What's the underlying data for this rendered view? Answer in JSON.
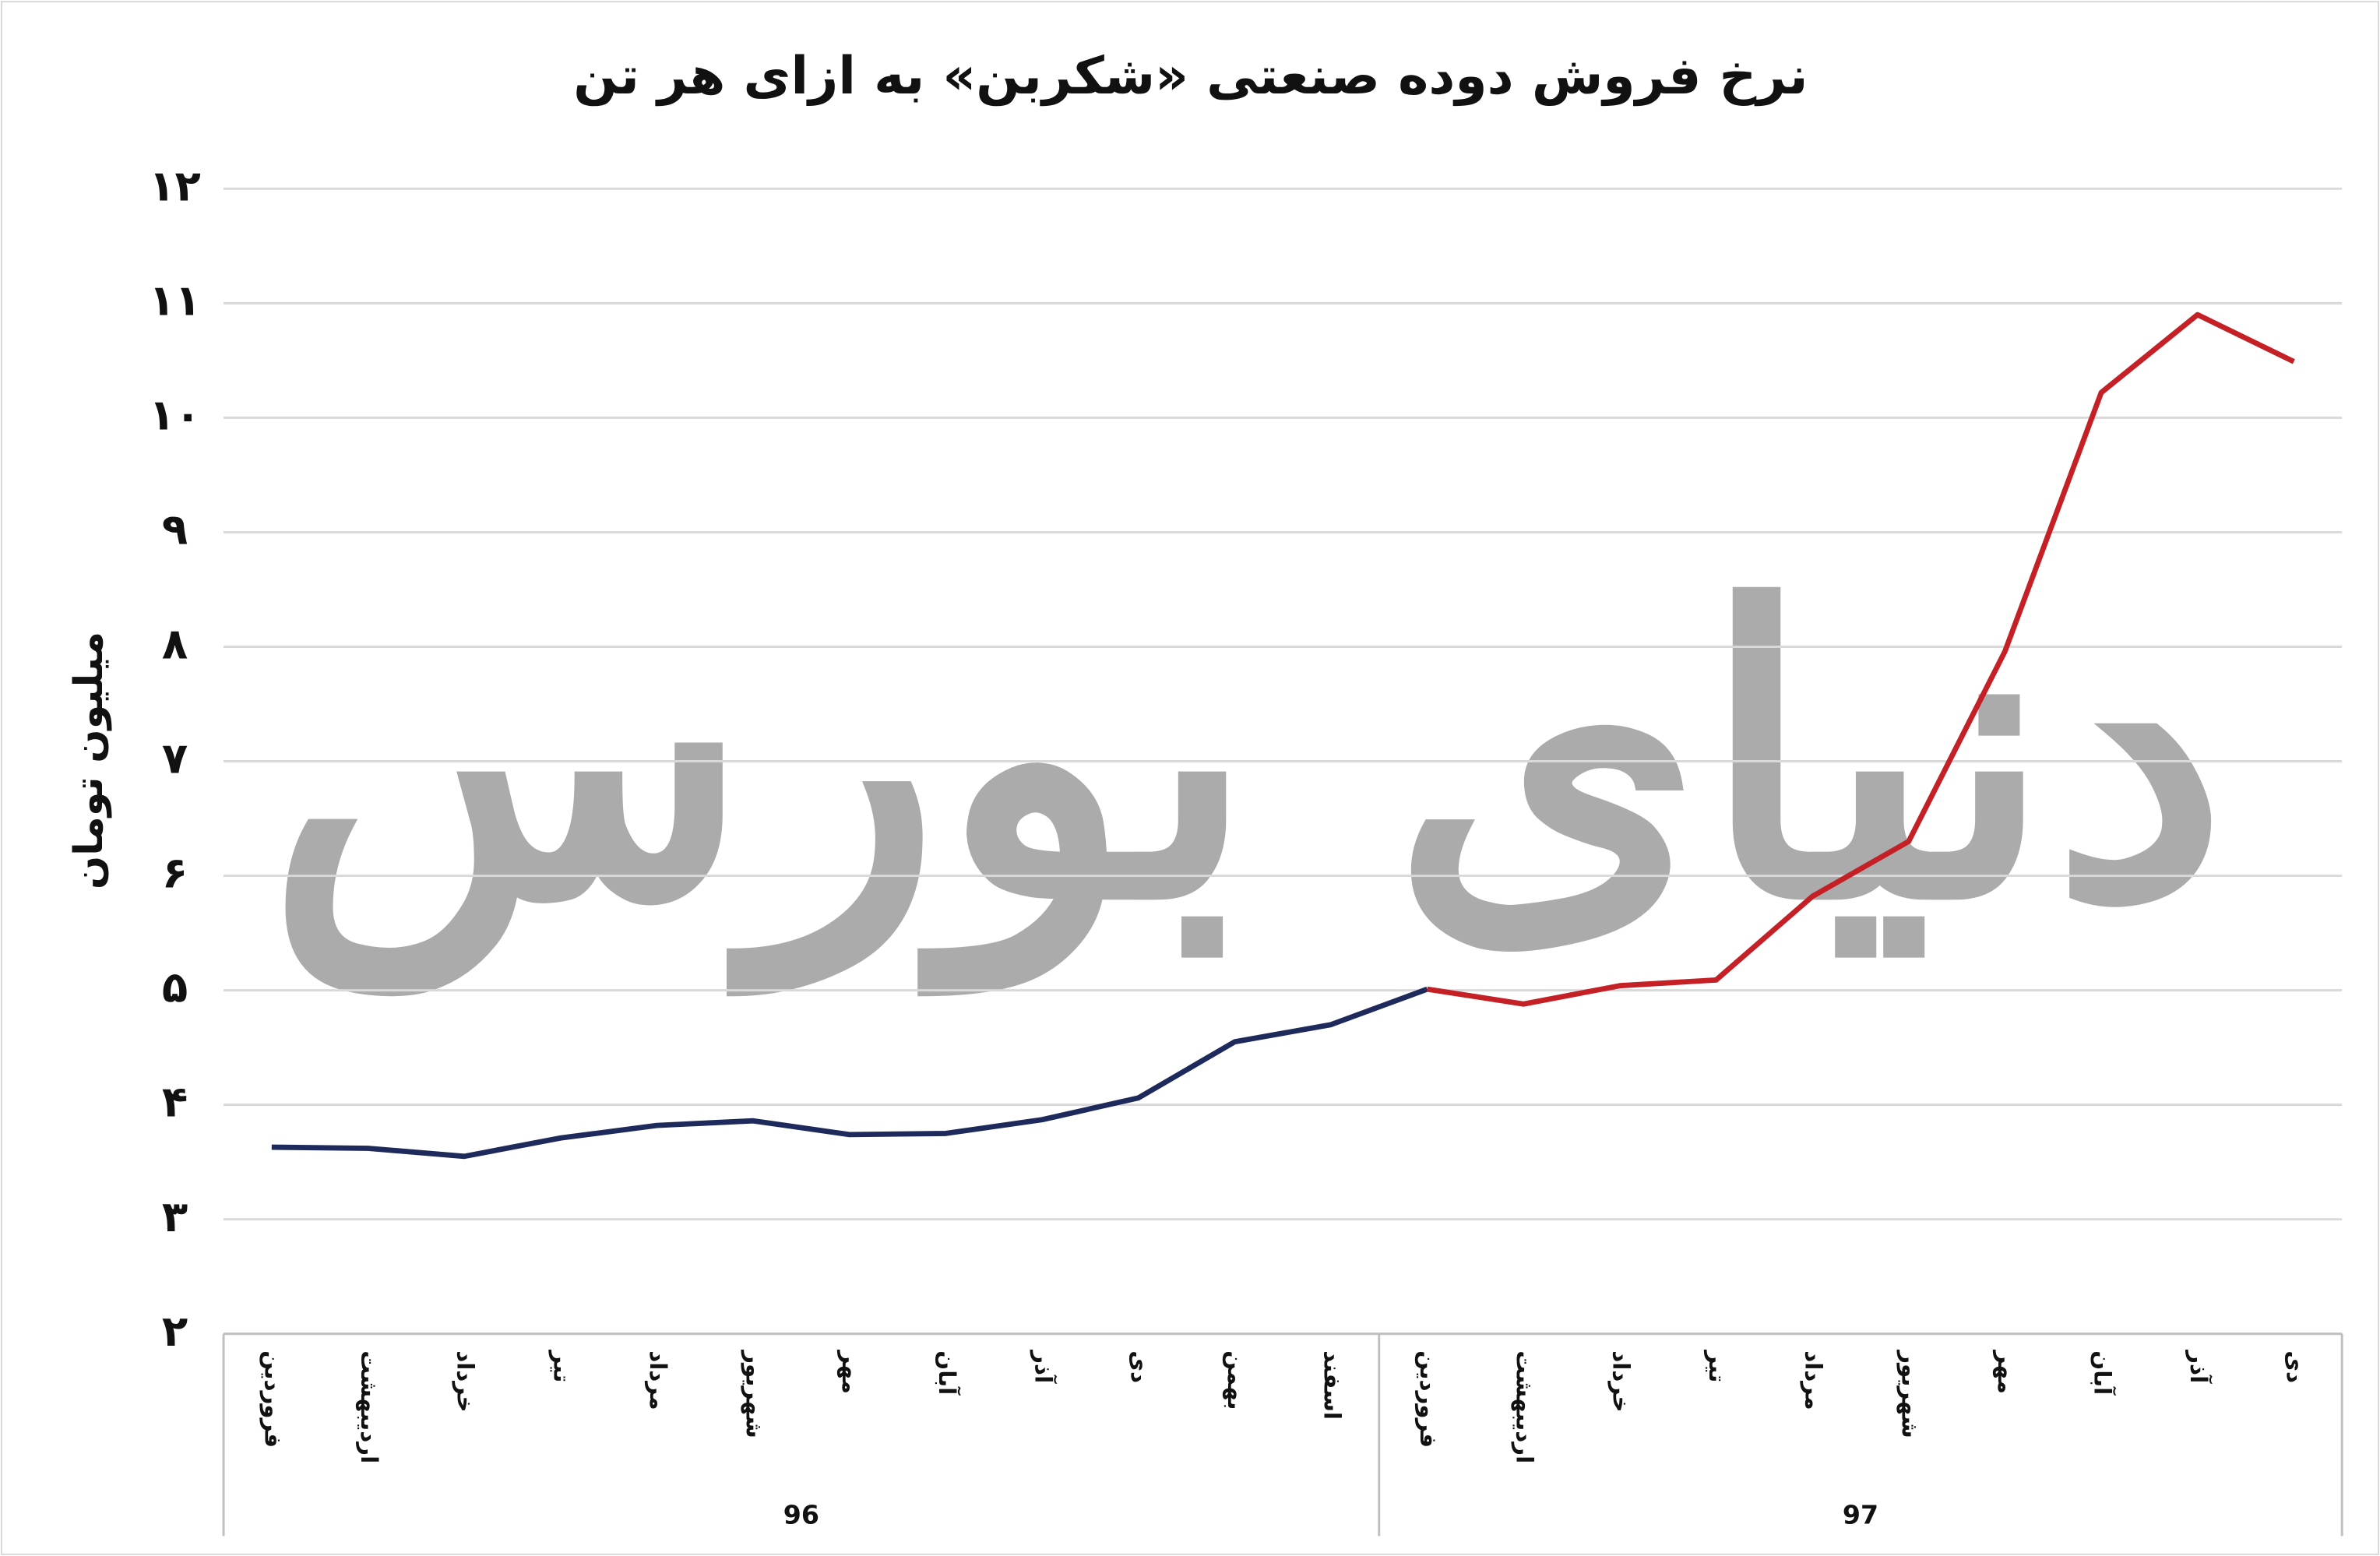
{
  "chart_data": {
    "type": "line",
    "title": "نرخ فروش دوده صنعتی «شکربن» به ازای هر تن",
    "y_label": "میلیون تومان",
    "watermark": "دنیای بورس",
    "categories": [
      "فروردین",
      "اردیبهشت",
      "خرداد",
      "تیر",
      "مرداد",
      "شهریور",
      "مهر",
      "آبان",
      "آذر",
      "دی",
      "بهمن",
      "اسفند",
      "فروردین",
      "اردیبهشت",
      "خرداد",
      "تیر",
      "مرداد",
      "شهریور",
      "مهر",
      "آبان",
      "آذر",
      "دی"
    ],
    "series": [
      {
        "name": "96",
        "color": "#1f2a5c",
        "values": [
          3.63,
          3.62,
          3.55,
          3.71,
          3.82,
          3.86,
          3.74,
          3.75,
          3.87,
          4.06,
          4.55,
          4.7,
          5.01,
          null,
          null,
          null,
          null,
          null,
          null,
          null,
          null,
          null
        ]
      },
      {
        "name": "97",
        "color": "#c42026",
        "values": [
          null,
          null,
          null,
          null,
          null,
          null,
          null,
          null,
          null,
          null,
          null,
          null,
          5.01,
          4.88,
          5.04,
          5.09,
          5.82,
          6.3,
          7.96,
          10.22,
          10.9,
          10.49
        ]
      }
    ],
    "ylim": [
      2,
      12
    ],
    "yticks": [
      {
        "value": 2,
        "label": "۲"
      },
      {
        "value": 3,
        "label": "۳"
      },
      {
        "value": 4,
        "label": "۴"
      },
      {
        "value": 5,
        "label": "۵"
      },
      {
        "value": 6,
        "label": "۶"
      },
      {
        "value": 7,
        "label": "۷"
      },
      {
        "value": 8,
        "label": "۸"
      },
      {
        "value": 9,
        "label": "۹"
      },
      {
        "value": 10,
        "label": "۱۰"
      },
      {
        "value": 11,
        "label": "۱۱"
      },
      {
        "value": 12,
        "label": "۱۲"
      }
    ],
    "grid": true
  }
}
